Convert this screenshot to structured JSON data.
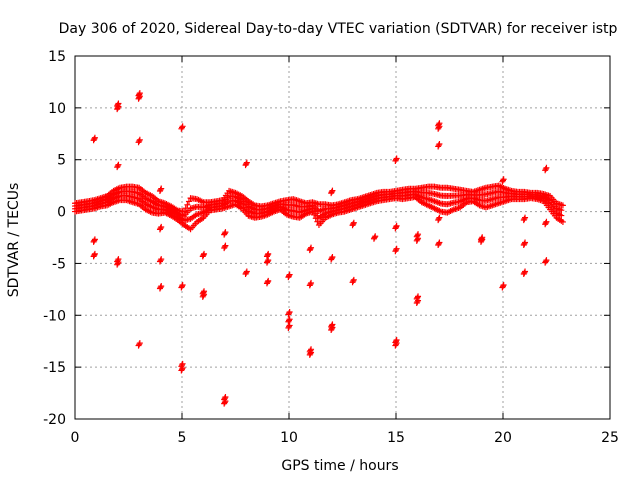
{
  "chart_data": {
    "type": "scatter",
    "title": "Day 306 of 2020, Sidereal Day-to-day VTEC variation (SDTVAR) for receiver istp",
    "xlabel": "GPS time / hours",
    "ylabel": "SDTVAR / TECUs",
    "xlim": [
      0,
      25
    ],
    "ylim": [
      -20,
      15
    ],
    "xticks": [
      "0",
      "5",
      "10",
      "15",
      "20",
      "25"
    ],
    "yticks": [
      "15",
      "10",
      "5",
      "0",
      "-5",
      "-10",
      "-15",
      "-20"
    ],
    "grid": true,
    "marker": "plus",
    "color": "#ff0000",
    "band": [
      [
        0.0,
        0.0,
        0.8
      ],
      [
        0.3,
        0.1,
        0.9
      ],
      [
        0.6,
        0.2,
        1.0
      ],
      [
        0.9,
        0.3,
        1.1
      ],
      [
        1.2,
        0.5,
        1.3
      ],
      [
        1.5,
        0.6,
        1.5
      ],
      [
        1.8,
        0.9,
        2.0
      ],
      [
        2.1,
        1.1,
        2.3
      ],
      [
        2.4,
        1.1,
        2.4
      ],
      [
        2.7,
        0.9,
        2.4
      ],
      [
        3.0,
        0.7,
        2.3
      ],
      [
        3.3,
        0.2,
        1.8
      ],
      [
        3.6,
        -0.1,
        1.5
      ],
      [
        3.9,
        -0.2,
        1.0
      ],
      [
        4.2,
        -0.1,
        0.8
      ],
      [
        4.5,
        -0.4,
        0.5
      ],
      [
        4.8,
        -0.8,
        0.1
      ],
      [
        5.1,
        -1.3,
        0.0
      ],
      [
        5.4,
        -1.7,
        1.3
      ],
      [
        5.7,
        -1.0,
        1.2
      ],
      [
        6.0,
        -0.6,
        0.9
      ],
      [
        6.3,
        0.1,
        0.9
      ],
      [
        6.6,
        0.2,
        1.0
      ],
      [
        6.9,
        0.3,
        1.1
      ],
      [
        7.2,
        0.5,
        2.0
      ],
      [
        7.5,
        0.7,
        1.8
      ],
      [
        7.8,
        0.3,
        1.5
      ],
      [
        8.1,
        -0.4,
        1.0
      ],
      [
        8.4,
        -0.6,
        0.6
      ],
      [
        8.7,
        -0.5,
        0.5
      ],
      [
        9.0,
        -0.3,
        0.6
      ],
      [
        9.3,
        0.0,
        0.8
      ],
      [
        9.6,
        0.2,
        1.0
      ],
      [
        9.9,
        -0.3,
        1.1
      ],
      [
        10.2,
        -0.5,
        1.2
      ],
      [
        10.5,
        -0.6,
        1.0
      ],
      [
        10.8,
        -0.2,
        0.8
      ],
      [
        11.1,
        0.0,
        0.9
      ],
      [
        11.4,
        -1.3,
        0.7
      ],
      [
        11.7,
        -0.6,
        0.7
      ],
      [
        12.0,
        -0.3,
        0.6
      ],
      [
        12.3,
        -0.1,
        0.7
      ],
      [
        12.6,
        0.0,
        0.9
      ],
      [
        12.9,
        0.2,
        1.1
      ],
      [
        13.2,
        0.4,
        1.2
      ],
      [
        13.5,
        0.6,
        1.4
      ],
      [
        13.8,
        0.8,
        1.6
      ],
      [
        14.1,
        1.0,
        1.8
      ],
      [
        14.4,
        1.1,
        1.9
      ],
      [
        14.7,
        1.2,
        1.9
      ],
      [
        15.0,
        1.3,
        2.0
      ],
      [
        15.3,
        1.2,
        2.1
      ],
      [
        15.6,
        1.3,
        2.2
      ],
      [
        15.9,
        1.4,
        2.2
      ],
      [
        16.2,
        0.9,
        2.3
      ],
      [
        16.5,
        0.6,
        2.4
      ],
      [
        16.8,
        0.3,
        2.4
      ],
      [
        17.1,
        0.0,
        2.3
      ],
      [
        17.4,
        -0.1,
        2.3
      ],
      [
        17.7,
        0.2,
        2.2
      ],
      [
        18.0,
        0.4,
        2.1
      ],
      [
        18.3,
        0.9,
        2.0
      ],
      [
        18.6,
        1.0,
        1.9
      ],
      [
        18.9,
        0.6,
        2.1
      ],
      [
        19.2,
        0.4,
        2.3
      ],
      [
        19.5,
        0.6,
        2.4
      ],
      [
        19.8,
        0.8,
        2.5
      ],
      [
        20.1,
        1.0,
        2.2
      ],
      [
        20.4,
        1.2,
        2.0
      ],
      [
        20.7,
        1.2,
        1.9
      ],
      [
        21.0,
        1.2,
        1.9
      ],
      [
        21.3,
        1.3,
        1.8
      ],
      [
        21.6,
        1.2,
        1.8
      ],
      [
        21.9,
        1.0,
        1.7
      ],
      [
        22.2,
        0.2,
        1.5
      ],
      [
        22.5,
        -0.6,
        0.8
      ],
      [
        22.8,
        -1.0,
        0.6
      ]
    ],
    "clusters": [
      [
        0.9,
        7.0
      ],
      [
        0.9,
        -2.8
      ],
      [
        0.9,
        -4.2
      ],
      [
        2.0,
        10.3
      ],
      [
        2.0,
        10.0
      ],
      [
        2.0,
        4.4
      ],
      [
        2.0,
        -4.7
      ],
      [
        2.0,
        -5.0
      ],
      [
        3.0,
        11.3
      ],
      [
        3.0,
        11.0
      ],
      [
        3.0,
        6.8
      ],
      [
        3.0,
        -12.8
      ],
      [
        4.0,
        2.1
      ],
      [
        4.0,
        -1.6
      ],
      [
        4.0,
        -4.7
      ],
      [
        4.0,
        -7.3
      ],
      [
        5.0,
        8.1
      ],
      [
        5.0,
        -7.2
      ],
      [
        5.0,
        -14.8
      ],
      [
        5.0,
        -15.2
      ],
      [
        6.0,
        -4.2
      ],
      [
        6.0,
        -7.8
      ],
      [
        6.0,
        -8.1
      ],
      [
        7.0,
        -3.4
      ],
      [
        7.0,
        -2.1
      ],
      [
        7.0,
        -18.0
      ],
      [
        7.0,
        -18.4
      ],
      [
        8.0,
        4.6
      ],
      [
        8.0,
        -5.9
      ],
      [
        9.0,
        -4.2
      ],
      [
        9.0,
        -4.8
      ],
      [
        9.0,
        -6.8
      ],
      [
        10.0,
        -6.2
      ],
      [
        10.0,
        -9.8
      ],
      [
        10.0,
        -10.5
      ],
      [
        10.0,
        -11.1
      ],
      [
        11.0,
        -3.6
      ],
      [
        11.0,
        -7.0
      ],
      [
        11.0,
        -13.4
      ],
      [
        11.0,
        -13.7
      ],
      [
        12.0,
        1.9
      ],
      [
        12.0,
        -4.5
      ],
      [
        12.0,
        -11.0
      ],
      [
        12.0,
        -11.3
      ],
      [
        13.0,
        -1.2
      ],
      [
        13.0,
        -6.7
      ],
      [
        14.0,
        -2.5
      ],
      [
        15.0,
        5.0
      ],
      [
        15.0,
        -1.5
      ],
      [
        15.0,
        -3.7
      ],
      [
        15.0,
        -12.5
      ],
      [
        15.0,
        -12.8
      ],
      [
        16.0,
        -2.3
      ],
      [
        16.0,
        -2.7
      ],
      [
        16.0,
        -8.3
      ],
      [
        16.0,
        -8.7
      ],
      [
        17.0,
        8.4
      ],
      [
        17.0,
        8.1
      ],
      [
        17.0,
        6.4
      ],
      [
        17.0,
        -0.7
      ],
      [
        17.0,
        -3.1
      ],
      [
        19.0,
        -2.6
      ],
      [
        19.0,
        -2.8
      ],
      [
        20.0,
        3.0
      ],
      [
        20.0,
        -7.2
      ],
      [
        21.0,
        -0.7
      ],
      [
        21.0,
        -3.1
      ],
      [
        21.0,
        -5.9
      ],
      [
        22.0,
        4.1
      ],
      [
        22.0,
        -1.1
      ],
      [
        22.0,
        -4.8
      ]
    ]
  }
}
